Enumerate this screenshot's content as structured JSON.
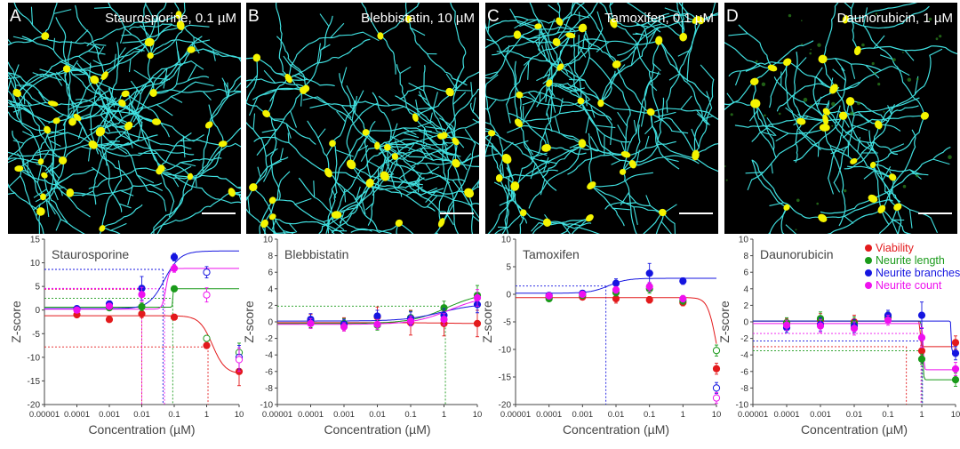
{
  "panels": [
    {
      "letter": "A",
      "title": "Staurosporine, 0.1 µM"
    },
    {
      "letter": "B",
      "title": "Blebbistatin, 10 µM"
    },
    {
      "letter": "C",
      "title": "Tamoxifen, 0.1 µM"
    },
    {
      "letter": "D",
      "title": "Daunorubicin, 1 µM"
    }
  ],
  "legend": [
    {
      "name": "Viability",
      "color": "#e31a1c"
    },
    {
      "name": "Neurite length",
      "color": "#1a9a1a"
    },
    {
      "name": "Neurite branches",
      "color": "#1515e0"
    },
    {
      "name": "Neurite count",
      "color": "#ee11ee"
    }
  ],
  "colors": {
    "neurite": "#40e0e0",
    "soma": "#f5f500",
    "background": "#000000"
  },
  "chart_data": [
    {
      "type": "scatter",
      "title": "Staurosporine",
      "xlabel": "Concentration (µM)",
      "ylabel": "Z-score",
      "x_scale": "log",
      "xlim": [
        1e-05,
        10
      ],
      "x_ticks": [
        "0.00001",
        "0.0001",
        "0.001",
        "0.01",
        "0.1",
        "1",
        "10"
      ],
      "ylim": [
        -20,
        15
      ],
      "y_ticks": [
        "15",
        "10",
        "5",
        "0",
        "-5",
        "-10",
        "-15",
        "-20"
      ],
      "series": [
        {
          "key": "viability",
          "x": [
            0.0001,
            0.001,
            0.01,
            0.1,
            1,
            10
          ],
          "y": [
            -1.0,
            -2.0,
            -0.8,
            -1.5,
            -7.5,
            -13.0
          ],
          "err": [
            0.6,
            0.5,
            0.8,
            0.6,
            0.6,
            3.0
          ],
          "open": [
            false,
            false,
            false,
            false,
            false,
            false
          ]
        },
        {
          "key": "length",
          "x": [
            0.0001,
            0.001,
            0.01,
            0.1,
            1,
            10
          ],
          "y": [
            0.2,
            0.5,
            0.7,
            4.5,
            -6.0,
            -9.0
          ],
          "err": [
            0.5,
            0.5,
            0.8,
            0.6,
            0.6,
            2.0
          ],
          "open": [
            false,
            false,
            false,
            false,
            true,
            true
          ]
        },
        {
          "key": "branches",
          "x": [
            0.0001,
            0.001,
            0.01,
            0.1,
            1,
            10
          ],
          "y": [
            0.3,
            1.3,
            4.6,
            11.2,
            8.0,
            -10.0
          ],
          "err": [
            0.5,
            0.6,
            2.5,
            0.8,
            1.2,
            2.5
          ],
          "open": [
            false,
            false,
            false,
            false,
            true,
            true
          ]
        },
        {
          "key": "count",
          "x": [
            0.0001,
            0.001,
            0.01,
            0.1,
            1,
            10
          ],
          "y": [
            0.0,
            0.8,
            3.3,
            8.8,
            3.2,
            -10.5
          ],
          "err": [
            0.5,
            0.6,
            1.5,
            0.8,
            1.5,
            2.5
          ],
          "open": [
            false,
            false,
            false,
            false,
            true,
            true
          ]
        }
      ]
    },
    {
      "type": "scatter",
      "title": "Blebbistatin",
      "xlabel": "Concentration (µM)",
      "ylabel": "Z-score",
      "x_scale": "log",
      "xlim": [
        1e-05,
        10
      ],
      "x_ticks": [
        "0.00001",
        "0.0001",
        "0.001",
        "0.01",
        "0.1",
        "1",
        "10"
      ],
      "ylim": [
        -10,
        10
      ],
      "y_ticks": [
        "10",
        "8",
        "6",
        "4",
        "2",
        "0",
        "-2",
        "-4",
        "-6",
        "-8",
        "-10"
      ],
      "series": [
        {
          "key": "viability",
          "x": [
            0.0001,
            0.001,
            0.01,
            0.1,
            1,
            10
          ],
          "y": [
            0.1,
            -0.3,
            0.6,
            -0.1,
            -0.2,
            -0.2
          ],
          "err": [
            0.8,
            0.8,
            1.2,
            1.5,
            1.5,
            1.6
          ],
          "open": [
            false,
            false,
            false,
            false,
            false,
            false
          ]
        },
        {
          "key": "length",
          "x": [
            0.0001,
            0.001,
            0.01,
            0.1,
            1,
            10
          ],
          "y": [
            -0.1,
            -0.2,
            -0.4,
            0.5,
            1.7,
            3.2
          ],
          "err": [
            0.6,
            0.6,
            0.6,
            0.8,
            0.8,
            1.2
          ],
          "open": [
            false,
            false,
            false,
            false,
            false,
            false
          ]
        },
        {
          "key": "branches",
          "x": [
            0.0001,
            0.001,
            0.01,
            0.1,
            1,
            10
          ],
          "y": [
            0.3,
            -0.3,
            0.7,
            0.4,
            0.8,
            2.1
          ],
          "err": [
            0.7,
            0.6,
            0.7,
            0.8,
            0.8,
            1.0
          ],
          "open": [
            false,
            false,
            false,
            false,
            false,
            false
          ]
        },
        {
          "key": "count",
          "x": [
            0.0001,
            0.001,
            0.01,
            0.1,
            1,
            10
          ],
          "y": [
            -0.2,
            -0.6,
            -0.3,
            0.1,
            0.3,
            2.9
          ],
          "err": [
            0.6,
            0.5,
            0.6,
            0.6,
            0.7,
            1.0
          ],
          "open": [
            false,
            false,
            false,
            false,
            false,
            false
          ]
        }
      ]
    },
    {
      "type": "scatter",
      "title": "Tamoxifen",
      "xlabel": "Concentration (µM)",
      "ylabel": "Z-score",
      "x_scale": "log",
      "xlim": [
        1e-05,
        10
      ],
      "x_ticks": [
        "0.00001",
        "0.0001",
        "0.001",
        "0.01",
        "0.1",
        "1",
        "10"
      ],
      "ylim": [
        -20,
        10
      ],
      "y_ticks": [
        "10",
        "5",
        "0",
        "-5",
        "-10",
        "-15",
        "-20"
      ],
      "series": [
        {
          "key": "viability",
          "x": [
            0.0001,
            0.001,
            0.01,
            0.1,
            1,
            10
          ],
          "y": [
            -0.5,
            -0.5,
            -0.8,
            -1.0,
            -1.5,
            -13.5
          ],
          "err": [
            0.5,
            0.5,
            0.8,
            0.6,
            0.6,
            1.0
          ],
          "open": [
            false,
            false,
            false,
            false,
            false,
            false
          ]
        },
        {
          "key": "length",
          "x": [
            0.0001,
            0.001,
            0.01,
            0.1,
            1,
            10
          ],
          "y": [
            -0.8,
            -0.2,
            0.3,
            1.0,
            -1.2,
            -10.2
          ],
          "err": [
            0.5,
            0.5,
            0.6,
            0.8,
            0.6,
            1.0
          ],
          "open": [
            false,
            false,
            false,
            false,
            false,
            true
          ]
        },
        {
          "key": "branches",
          "x": [
            0.0001,
            0.001,
            0.01,
            0.1,
            1,
            10
          ],
          "y": [
            -0.2,
            0.2,
            2.0,
            3.8,
            2.4,
            -17.0
          ],
          "err": [
            0.5,
            0.5,
            0.8,
            1.8,
            0.6,
            1.0
          ],
          "open": [
            false,
            false,
            false,
            false,
            false,
            true
          ]
        },
        {
          "key": "count",
          "x": [
            0.0001,
            0.001,
            0.01,
            0.1,
            1,
            10
          ],
          "y": [
            -0.3,
            0.0,
            0.8,
            1.4,
            -0.8,
            -18.8
          ],
          "err": [
            0.5,
            0.5,
            0.6,
            0.8,
            0.6,
            1.0
          ],
          "open": [
            false,
            false,
            false,
            false,
            false,
            true
          ]
        }
      ]
    },
    {
      "type": "scatter",
      "title": "Daunorubicin",
      "xlabel": "Concentration (µM)",
      "ylabel": "Z-score",
      "x_scale": "log",
      "xlim": [
        1e-05,
        10
      ],
      "x_ticks": [
        "0.00001",
        "0.0001",
        "0.001",
        "0.01",
        "0.1",
        "1",
        "10"
      ],
      "ylim": [
        -10,
        10
      ],
      "y_ticks": [
        "10",
        "8",
        "6",
        "4",
        "2",
        "0",
        "-2",
        "-4",
        "-6",
        "-8",
        "-10"
      ],
      "legend_position": "top-right",
      "series": [
        {
          "key": "viability",
          "x": [
            0.0001,
            0.001,
            0.01,
            0.1,
            1,
            10
          ],
          "y": [
            -0.2,
            0.2,
            0.0,
            0.5,
            -3.5,
            -2.5
          ],
          "err": [
            0.6,
            0.8,
            0.8,
            0.6,
            0.6,
            0.8
          ],
          "open": [
            false,
            false,
            false,
            false,
            false,
            false
          ]
        },
        {
          "key": "length",
          "x": [
            0.0001,
            0.001,
            0.01,
            0.1,
            1,
            10
          ],
          "y": [
            -0.1,
            0.4,
            -0.2,
            0.6,
            -4.5,
            -7.0
          ],
          "err": [
            0.6,
            0.8,
            0.8,
            0.6,
            0.6,
            0.8
          ],
          "open": [
            false,
            false,
            false,
            false,
            false,
            false
          ]
        },
        {
          "key": "branches",
          "x": [
            0.0001,
            0.001,
            0.01,
            0.1,
            1,
            10
          ],
          "y": [
            -0.7,
            -0.3,
            -0.5,
            0.8,
            0.8,
            -3.8
          ],
          "err": [
            0.6,
            0.8,
            0.8,
            0.6,
            1.6,
            0.8
          ],
          "open": [
            false,
            false,
            false,
            false,
            false,
            false
          ]
        },
        {
          "key": "count",
          "x": [
            0.0001,
            0.001,
            0.01,
            0.1,
            1,
            10
          ],
          "y": [
            -0.4,
            -0.5,
            -0.8,
            0.2,
            -1.9,
            -5.7
          ],
          "err": [
            0.6,
            0.8,
            0.8,
            0.6,
            1.2,
            0.8
          ],
          "open": [
            false,
            false,
            false,
            false,
            false,
            false
          ]
        }
      ]
    }
  ]
}
